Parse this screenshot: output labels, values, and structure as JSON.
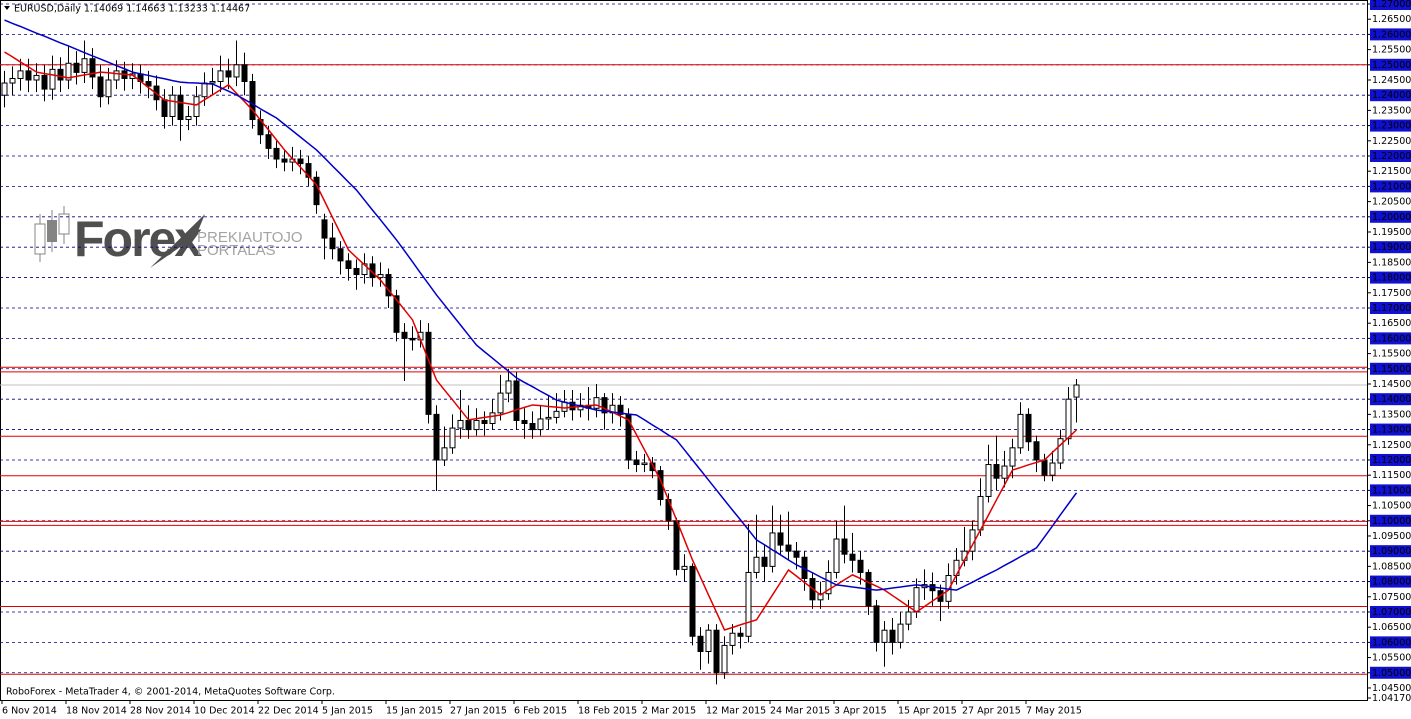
{
  "chart_data": {
    "type": "candlestick",
    "title": "EURUSD,Daily  1.14069 1.14663 1.13233 1.14467",
    "footer": "RoboForex - MetaTrader 4, © 2001-2014, MetaQuotes Software Corp.",
    "watermark": {
      "brand": "Forex",
      "line1": "PREKIAUTOJO",
      "line2": "PORTALAS"
    },
    "categories": [
      "6 Nov 2014",
      null,
      null,
      null,
      null,
      null,
      null,
      null,
      "18 Nov 2014",
      null,
      null,
      null,
      null,
      null,
      null,
      null,
      "28 Nov 2014",
      null,
      null,
      null,
      null,
      null,
      null,
      null,
      "10 Dec 2014",
      null,
      null,
      null,
      null,
      null,
      null,
      null,
      "22 Dec 2014",
      null,
      null,
      null,
      null,
      null,
      null,
      null,
      "5 Jan 2015",
      null,
      null,
      null,
      null,
      null,
      null,
      null,
      "15 Jan 2015",
      null,
      null,
      null,
      null,
      null,
      null,
      null,
      "27 Jan 2015",
      null,
      null,
      null,
      null,
      null,
      null,
      null,
      "6 Feb 2015",
      null,
      null,
      null,
      null,
      null,
      null,
      null,
      "18 Feb 2015",
      null,
      null,
      null,
      null,
      null,
      null,
      null,
      "2 Mar 2015",
      null,
      null,
      null,
      null,
      null,
      null,
      null,
      "12 Mar 2015",
      null,
      null,
      null,
      null,
      null,
      null,
      null,
      "24 Mar 2015",
      null,
      null,
      null,
      null,
      null,
      null,
      null,
      "3 Apr 2015",
      null,
      null,
      null,
      null,
      null,
      null,
      null,
      "15 Apr 2015",
      null,
      null,
      null,
      null,
      null,
      null,
      null,
      "27 Apr 2015",
      null,
      null,
      null,
      null,
      null,
      null,
      null,
      "7 May 2015",
      null,
      null,
      null,
      null,
      null,
      null
    ],
    "open": [
      1.24,
      1.244,
      1.2455,
      1.248,
      1.245,
      1.2465,
      1.242,
      1.2485,
      1.245,
      1.2505,
      1.2475,
      1.252,
      1.246,
      1.2395,
      1.245,
      1.248,
      1.2455,
      1.247,
      1.2445,
      1.243,
      1.2385,
      1.233,
      1.24,
      1.232,
      1.233,
      1.2395,
      1.244,
      1.2445,
      1.248,
      1.246,
      1.25,
      1.2445,
      1.232,
      1.227,
      1.2225,
      1.219,
      1.218,
      1.219,
      1.2175,
      1.213,
      1.199,
      1.193,
      1.1895,
      1.1855,
      1.183,
      1.181,
      1.1845,
      1.18,
      1.181,
      1.174,
      1.162,
      1.16,
      1.1595,
      1.162,
      1.135,
      1.12,
      1.124,
      1.1305,
      1.133,
      1.13,
      1.133,
      1.132,
      1.1355,
      1.142,
      1.146,
      1.133,
      1.132,
      1.13,
      1.1335,
      1.134,
      1.136,
      1.139,
      1.1365,
      1.138,
      1.137,
      1.1405,
      1.1355,
      1.138,
      1.135,
      1.12,
      1.1185,
      1.119,
      1.1165,
      1.107,
      1.1,
      1.084,
      1.085,
      1.062,
      1.057,
      1.064,
      1.05,
      1.059,
      1.063,
      1.062,
      1.083,
      1.088,
      1.085,
      1.096,
      1.092,
      1.09,
      1.088,
      1.081,
      1.074,
      1.076,
      1.083,
      1.094,
      1.089,
      1.087,
      1.083,
      1.072,
      1.06,
      1.064,
      1.06,
      1.066,
      1.07,
      1.078,
      1.079,
      1.077,
      1.0735,
      1.082,
      1.087,
      1.09,
      1.097,
      1.108,
      1.1185,
      1.114,
      1.118,
      1.124,
      1.135,
      1.126,
      1.12,
      1.115,
      1.119,
      1.127,
      1.14069
    ],
    "high": [
      1.248,
      1.2495,
      1.252,
      1.252,
      1.2505,
      1.25,
      1.253,
      1.2525,
      1.256,
      1.2545,
      1.258,
      1.2555,
      1.25,
      1.249,
      1.2515,
      1.251,
      1.2505,
      1.25,
      1.248,
      1.2465,
      1.242,
      1.243,
      1.243,
      1.2365,
      1.243,
      1.2475,
      1.249,
      1.253,
      1.252,
      1.258,
      1.254,
      1.247,
      1.235,
      1.23,
      1.225,
      1.222,
      1.223,
      1.222,
      1.22,
      1.215,
      1.201,
      1.198,
      1.192,
      1.188,
      1.186,
      1.188,
      1.187,
      1.185,
      1.183,
      1.176,
      1.165,
      1.164,
      1.166,
      1.165,
      1.138,
      1.131,
      1.135,
      1.143,
      1.138,
      1.137,
      1.136,
      1.14,
      1.148,
      1.15,
      1.149,
      1.137,
      1.136,
      1.138,
      1.141,
      1.142,
      1.143,
      1.143,
      1.142,
      1.144,
      1.145,
      1.142,
      1.142,
      1.141,
      1.137,
      1.123,
      1.122,
      1.121,
      1.118,
      1.109,
      1.101,
      1.089,
      1.086,
      1.065,
      1.066,
      1.066,
      1.062,
      1.066,
      1.065,
      1.099,
      1.102,
      1.092,
      1.105,
      1.102,
      1.103,
      1.093,
      1.09,
      1.083,
      1.08,
      1.087,
      1.1,
      1.105,
      1.096,
      1.09,
      1.084,
      1.074,
      1.067,
      1.068,
      1.07,
      1.074,
      1.081,
      1.084,
      1.083,
      1.079,
      1.086,
      1.091,
      1.098,
      1.1,
      1.114,
      1.125,
      1.128,
      1.123,
      1.127,
      1.139,
      1.137,
      1.128,
      1.122,
      1.123,
      1.13,
      1.144,
      1.14663
    ],
    "low": [
      1.236,
      1.24,
      1.2415,
      1.241,
      1.241,
      1.238,
      1.2385,
      1.241,
      1.242,
      1.2435,
      1.244,
      1.242,
      1.236,
      1.237,
      1.242,
      1.2415,
      1.242,
      1.2405,
      1.239,
      1.235,
      1.229,
      1.23,
      1.225,
      1.2285,
      1.23,
      1.2365,
      1.24,
      1.241,
      1.242,
      1.243,
      1.24,
      1.229,
      1.224,
      1.219,
      1.216,
      1.215,
      1.215,
      1.214,
      1.21,
      1.201,
      1.186,
      1.186,
      1.181,
      1.179,
      1.176,
      1.178,
      1.177,
      1.177,
      1.17,
      1.159,
      1.146,
      1.156,
      1.157,
      1.132,
      1.1098,
      1.118,
      1.122,
      1.127,
      1.127,
      1.128,
      1.128,
      1.13,
      1.133,
      1.139,
      1.13,
      1.127,
      1.127,
      1.128,
      1.13,
      1.132,
      1.134,
      1.133,
      1.134,
      1.133,
      1.134,
      1.13,
      1.132,
      1.131,
      1.117,
      1.116,
      1.116,
      1.114,
      1.105,
      1.097,
      1.082,
      1.08,
      1.059,
      1.051,
      1.053,
      1.0462,
      1.048,
      1.056,
      1.058,
      1.06,
      1.081,
      1.08,
      1.083,
      1.089,
      1.087,
      1.084,
      1.077,
      1.071,
      1.071,
      1.074,
      1.081,
      1.086,
      1.083,
      1.079,
      1.069,
      1.057,
      1.052,
      1.056,
      1.058,
      1.064,
      1.068,
      1.074,
      1.072,
      1.067,
      1.071,
      1.079,
      1.085,
      1.087,
      1.095,
      1.106,
      1.11,
      1.111,
      1.114,
      1.122,
      1.123,
      1.116,
      1.113,
      1.113,
      1.117,
      1.125,
      1.13233
    ],
    "close": [
      1.244,
      1.2455,
      1.248,
      1.245,
      1.2465,
      1.242,
      1.2485,
      1.245,
      1.2505,
      1.2475,
      1.252,
      1.246,
      1.2395,
      1.245,
      1.248,
      1.2455,
      1.247,
      1.2445,
      1.243,
      1.2385,
      1.233,
      1.24,
      1.232,
      1.233,
      1.2395,
      1.244,
      1.2445,
      1.248,
      1.246,
      1.25,
      1.2445,
      1.232,
      1.227,
      1.2225,
      1.219,
      1.218,
      1.219,
      1.2175,
      1.213,
      1.204,
      1.193,
      1.1895,
      1.1855,
      1.183,
      1.181,
      1.1845,
      1.18,
      1.181,
      1.174,
      1.162,
      1.16,
      1.1595,
      1.162,
      1.135,
      1.12,
      1.124,
      1.1305,
      1.133,
      1.13,
      1.133,
      1.132,
      1.1355,
      1.142,
      1.146,
      1.133,
      1.132,
      1.13,
      1.1335,
      1.134,
      1.136,
      1.139,
      1.1365,
      1.138,
      1.137,
      1.1405,
      1.1355,
      1.138,
      1.135,
      1.12,
      1.1185,
      1.119,
      1.1165,
      1.107,
      1.1,
      1.084,
      1.085,
      1.062,
      1.057,
      1.064,
      1.05,
      1.059,
      1.063,
      1.062,
      1.083,
      1.088,
      1.085,
      1.096,
      1.092,
      1.09,
      1.088,
      1.081,
      1.074,
      1.076,
      1.083,
      1.094,
      1.089,
      1.087,
      1.083,
      1.072,
      1.06,
      1.064,
      1.06,
      1.066,
      1.07,
      1.078,
      1.079,
      1.077,
      1.0735,
      1.082,
      1.087,
      1.09,
      1.097,
      1.108,
      1.1185,
      1.114,
      1.118,
      1.124,
      1.135,
      1.126,
      1.12,
      1.115,
      1.119,
      1.127,
      1.14,
      1.14467
    ],
    "overlays": [
      {
        "type": "line",
        "color": "#e00000",
        "values": [
          1.2542,
          1.2526,
          1.2509,
          1.2493,
          1.2476,
          1.2471,
          1.2467,
          1.2462,
          1.2457,
          1.2462,
          1.2467,
          1.2471,
          1.2476,
          1.2474,
          1.2471,
          1.2469,
          1.2466,
          1.2446,
          1.2425,
          1.2405,
          1.2384,
          1.238,
          1.2376,
          1.2372,
          1.2368,
          1.2385,
          1.2401,
          1.2418,
          1.2434,
          1.2406,
          1.2379,
          1.2351,
          1.2318,
          1.2286,
          1.2253,
          1.222,
          1.2191,
          1.2163,
          1.2134,
          1.2105,
          1.2052,
          1.1998,
          1.1945,
          1.1891,
          1.1866,
          1.1842,
          1.1817,
          1.1792,
          1.1759,
          1.1727,
          1.1694,
          1.1661,
          1.1595,
          1.1529,
          1.1463,
          1.143,
          1.1398,
          1.1365,
          1.1332,
          1.1336,
          1.134,
          1.1344,
          1.1348,
          1.1356,
          1.1365,
          1.1373,
          1.1381,
          1.1379,
          1.1376,
          1.1374,
          1.1371,
          1.1374,
          1.1376,
          1.1379,
          1.1381,
          1.1369,
          1.1357,
          1.1344,
          1.1332,
          1.1283,
          1.1233,
          1.1184,
          1.1134,
          1.1068,
          1.1003,
          1.0937,
          1.0871,
          1.0814,
          1.0756,
          1.0699,
          1.0641,
          1.0649,
          1.0658,
          1.0666,
          1.0674,
          1.0715,
          1.0756,
          1.0797,
          1.0838,
          1.0818,
          1.0797,
          1.0777,
          1.0756,
          1.0773,
          1.0789,
          1.0806,
          1.0822,
          1.081,
          1.0797,
          1.0785,
          1.0772,
          1.0754,
          1.0736,
          1.0718,
          1.07,
          1.0718,
          1.0736,
          1.0754,
          1.0772,
          1.0822,
          1.0871,
          1.0921,
          1.097,
          1.1019,
          1.1069,
          1.1118,
          1.1167,
          1.1175,
          1.1184,
          1.1192,
          1.12,
          1.1225,
          1.125,
          1.1274,
          1.1299
        ]
      },
      {
        "type": "line",
        "color": "#0000c8",
        "values": [
          1.2647,
          1.2636,
          1.2626,
          1.2615,
          1.2604,
          1.2594,
          1.2583,
          1.2572,
          1.2562,
          1.2551,
          1.254,
          1.2529,
          1.2519,
          1.2508,
          1.2497,
          1.2487,
          1.2476,
          1.247,
          1.2465,
          1.2459,
          1.2454,
          1.2448,
          1.2443,
          1.2441,
          1.244,
          1.2438,
          1.2437,
          1.2425,
          1.2413,
          1.2401,
          1.2386,
          1.2371,
          1.2355,
          1.234,
          1.2325,
          1.2304,
          1.2283,
          1.2262,
          1.2241,
          1.222,
          1.2194,
          1.2167,
          1.2141,
          1.2114,
          1.2088,
          1.2055,
          1.2022,
          1.199,
          1.1957,
          1.1924,
          1.1888,
          1.1852,
          1.1815,
          1.1779,
          1.1743,
          1.171,
          1.1677,
          1.1644,
          1.1611,
          1.1578,
          1.1556,
          1.1535,
          1.1513,
          1.1492,
          1.147,
          1.1455,
          1.1441,
          1.1426,
          1.1412,
          1.1397,
          1.139,
          1.1384,
          1.1377,
          1.1371,
          1.1364,
          1.1361,
          1.1358,
          1.1354,
          1.1351,
          1.1348,
          1.1332,
          1.1315,
          1.1299,
          1.1282,
          1.1266,
          1.1233,
          1.12,
          1.1167,
          1.1134,
          1.1101,
          1.1068,
          1.1035,
          1.1003,
          1.097,
          1.0937,
          1.0921,
          1.0904,
          1.0888,
          1.0871,
          1.0855,
          1.0842,
          1.0829,
          1.0815,
          1.0802,
          1.0789,
          1.0786,
          1.0782,
          1.0779,
          1.0775,
          1.0772,
          1.0775,
          1.0779,
          1.0782,
          1.0786,
          1.0789,
          1.0786,
          1.0782,
          1.0779,
          1.0775,
          1.0772,
          1.0785,
          1.0798,
          1.0812,
          1.0825,
          1.0838,
          1.0853,
          1.0867,
          1.0882,
          1.0896,
          1.0911,
          1.0947,
          1.0983,
          1.102,
          1.1056,
          1.1092
        ]
      }
    ],
    "hlines": {
      "color": "#e00000",
      "values": [
        1.25,
        1.1505,
        1.149,
        1.1278,
        1.1148,
        1.0998,
        1.0985,
        1.0718,
        1.0495
      ]
    },
    "bid_line_color": "#c0c0c0",
    "bull_color": "#ffffff",
    "bear_color": "#000000",
    "outline_color": "#000000",
    "grid": true,
    "level_label_color": "#1010d0",
    "ylim": [
      1.0417,
      1.27
    ],
    "yticks": [
      {
        "value": 1.0417,
        "label": "1.04170"
      },
      {
        "value": 1.045,
        "label": "1.04500"
      },
      {
        "value": 1.05,
        "label": "1.05000"
      },
      {
        "value": 1.055,
        "label": "1.05500"
      },
      {
        "value": 1.06,
        "label": "1.06000"
      },
      {
        "value": 1.065,
        "label": "1.06500"
      },
      {
        "value": 1.07,
        "label": "1.07000"
      },
      {
        "value": 1.075,
        "label": "1.07500"
      },
      {
        "value": 1.08,
        "label": "1.08000"
      },
      {
        "value": 1.085,
        "label": "1.08500"
      },
      {
        "value": 1.09,
        "label": "1.09000"
      },
      {
        "value": 1.095,
        "label": "1.09500"
      },
      {
        "value": 1.1,
        "label": "1.10000"
      },
      {
        "value": 1.105,
        "label": "1.10500"
      },
      {
        "value": 1.11,
        "label": "1.11000"
      },
      {
        "value": 1.115,
        "label": "1.11500"
      },
      {
        "value": 1.12,
        "label": "1.12000"
      },
      {
        "value": 1.125,
        "label": "1.12500"
      },
      {
        "value": 1.13,
        "label": "1.13000"
      },
      {
        "value": 1.135,
        "label": "1.13500"
      },
      {
        "value": 1.14,
        "label": "1.14000"
      },
      {
        "value": 1.145,
        "label": "1.14500"
      },
      {
        "value": 1.15,
        "label": "1.15000"
      },
      {
        "value": 1.155,
        "label": "1.15500"
      },
      {
        "value": 1.16,
        "label": "1.16000"
      },
      {
        "value": 1.165,
        "label": "1.16500"
      },
      {
        "value": 1.17,
        "label": "1.17000"
      },
      {
        "value": 1.175,
        "label": "1.17500"
      },
      {
        "value": 1.18,
        "label": "1.18000"
      },
      {
        "value": 1.185,
        "label": "1.18500"
      },
      {
        "value": 1.19,
        "label": "1.19000"
      },
      {
        "value": 1.195,
        "label": "1.19500"
      },
      {
        "value": 1.2,
        "label": "1.20000"
      },
      {
        "value": 1.205,
        "label": "1.20500"
      },
      {
        "value": 1.21,
        "label": "1.21000"
      },
      {
        "value": 1.215,
        "label": "1.21500"
      },
      {
        "value": 1.22,
        "label": "1.22000"
      },
      {
        "value": 1.225,
        "label": "1.22500"
      },
      {
        "value": 1.23,
        "label": "1.23000"
      },
      {
        "value": 1.235,
        "label": "1.23500"
      },
      {
        "value": 1.24,
        "label": "1.24000"
      },
      {
        "value": 1.245,
        "label": "1.24500"
      },
      {
        "value": 1.25,
        "label": "1.25000"
      },
      {
        "value": 1.255,
        "label": "1.25500"
      },
      {
        "value": 1.26,
        "label": "1.26000"
      },
      {
        "value": 1.265,
        "label": "1.26500"
      },
      {
        "value": 1.27,
        "label": "1.27000"
      }
    ]
  }
}
